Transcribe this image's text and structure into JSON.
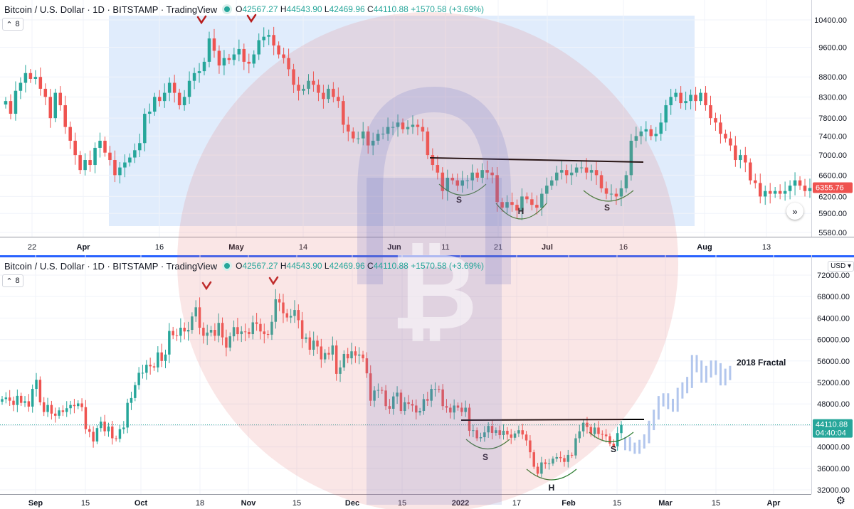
{
  "chart_data": [
    {
      "type": "candlestick",
      "title": "Bitcoin / U.S. Dollar · 1D · BITSTAMP · TradingView",
      "ohlc_legend": {
        "O": "42567.27",
        "H": "44543.90",
        "L": "42469.96",
        "C": "44110.88",
        "change": "+1570.58 (+3.69%)"
      },
      "collapse_label": "8",
      "x_ticks": [
        "22",
        "Apr",
        "16",
        "May",
        "14",
        "Jun",
        "11",
        "21",
        "Jul",
        "16",
        "Aug",
        "13"
      ],
      "y_ticks": [
        "10400.00",
        "9600.00",
        "8800.00",
        "8300.00",
        "7800.00",
        "7400.00",
        "7000.00",
        "6600.00",
        "6200.00",
        "5900.00",
        "5580.00"
      ],
      "ylim": [
        5580,
        10400
      ],
      "y_scale": "log",
      "last_price_label": "6355.76",
      "annotations": [
        "S",
        "H",
        "S"
      ],
      "closes": [
        8200,
        7900,
        8450,
        8650,
        8900,
        8750,
        8800,
        8500,
        8300,
        7800,
        8400,
        8100,
        7600,
        7300,
        7000,
        6700,
        6900,
        6800,
        7150,
        7300,
        7050,
        6900,
        6600,
        6750,
        6850,
        6950,
        7100,
        7250,
        7900,
        7950,
        8300,
        8200,
        8400,
        8650,
        8400,
        8100,
        8300,
        8700,
        8900,
        8950,
        9200,
        9850,
        9500,
        9100,
        9300,
        9250,
        9400,
        9550,
        9200,
        9150,
        9400,
        9800,
        9900,
        9950,
        9650,
        9400,
        9300,
        9000,
        8600,
        8450,
        8500,
        8700,
        8600,
        8400,
        8250,
        8500,
        8300,
        8200,
        7650,
        7500,
        7350,
        7350,
        7500,
        7200,
        7300,
        7450,
        7450,
        7600,
        7600,
        7700,
        7550,
        7600,
        7650,
        7600,
        7500,
        7000,
        6800,
        6650,
        6300,
        6550,
        6500,
        6400,
        6500,
        6500,
        6650,
        6550,
        6700,
        6650,
        6600,
        6100,
        6000,
        6100,
        6050,
        5950,
        6200,
        6150,
        6050,
        6000,
        6250,
        6400,
        6500,
        6650,
        6700,
        6600,
        6650,
        6750,
        6750,
        6650,
        6700,
        6600,
        6350,
        6250,
        6250,
        6200,
        6350,
        6600,
        7300,
        7400,
        7500,
        7550,
        7400,
        7450,
        7700,
        8100,
        8300,
        8400,
        8150,
        8200,
        8350,
        8200,
        8400,
        8100,
        7800,
        7700,
        7450,
        7350,
        7200,
        6900,
        7000,
        6850,
        6500,
        6450,
        6200,
        6300,
        6250,
        6300,
        6250,
        6300,
        6400,
        6500,
        6400,
        6300,
        6355.76
      ]
    },
    {
      "type": "candlestick",
      "title": "Bitcoin / U.S. Dollar · 1D · BITSTAMP · TradingView",
      "ohlc_legend": {
        "O": "42567.27",
        "H": "44543.90",
        "L": "42469.96",
        "C": "44110.88",
        "change": "+1570.58 (+3.69%)"
      },
      "collapse_label": "8",
      "x_ticks": [
        "Sep",
        "15",
        "Oct",
        "18",
        "Nov",
        "15",
        "Dec",
        "15",
        "2022",
        "17",
        "Feb",
        "15",
        "Mar",
        "15",
        "Apr"
      ],
      "y_ticks": [
        "72000.00",
        "68000.00",
        "64000.00",
        "60000.00",
        "56000.00",
        "52000.00",
        "48000.00",
        "44000.00",
        "40000.00",
        "36000.00",
        "32000.00"
      ],
      "ylim": [
        32000,
        72000
      ],
      "currency": "USD",
      "last_price_label": "44110.88",
      "countdown_label": "04:40:04",
      "annotations": [
        "S",
        "H",
        "S"
      ],
      "fractal_label": "2018 Fractal",
      "closes": [
        48900,
        49200,
        48600,
        47800,
        49500,
        48200,
        48500,
        47500,
        50800,
        52500,
        48300,
        46500,
        47800,
        46200,
        45800,
        46800,
        46500,
        47200,
        47800,
        47600,
        48100,
        47400,
        43300,
        42800,
        41000,
        43500,
        44700,
        42900,
        43800,
        41600,
        41500,
        43300,
        43600,
        48200,
        49100,
        51500,
        53800,
        53800,
        55300,
        55000,
        54800,
        57600,
        56000,
        57200,
        61600,
        60800,
        60700,
        62200,
        61500,
        61800,
        64300,
        66000,
        62200,
        60700,
        61300,
        61800,
        60700,
        63100,
        60400,
        58500,
        60600,
        62300,
        61000,
        61500,
        61400,
        61000,
        63200,
        62900,
        61500,
        61000,
        60900,
        63300,
        67500,
        66900,
        64900,
        64100,
        64400,
        65500,
        63600,
        60100,
        60400,
        58100,
        59800,
        58700,
        56300,
        57500,
        57200,
        58900,
        53600,
        54800,
        57300,
        56500,
        57800,
        57000,
        57200,
        56500,
        53700,
        48600,
        50500,
        50600,
        50500,
        47600,
        47100,
        49400,
        50100,
        46700,
        48300,
        48000,
        47700,
        46400,
        46700,
        48900,
        48600,
        50800,
        50800,
        50700,
        47600,
        47300,
        46400,
        47700,
        47300,
        46500,
        47300,
        43000,
        43100,
        41600,
        41800,
        42700,
        43900,
        42600,
        43100,
        42200,
        43000,
        42300,
        41700,
        42500,
        43100,
        42300,
        41200,
        39000,
        36300,
        35000,
        37100,
        36800,
        36900,
        37800,
        38100,
        37900,
        37200,
        38500,
        38400,
        41600,
        42900,
        44500,
        43700,
        42400,
        43600,
        42400,
        42300,
        42000,
        40600,
        40100,
        42567.27,
        44110.88
      ],
      "fractal_levels": [
        41000,
        40000,
        39500,
        40500,
        41500,
        44000,
        46000,
        48500,
        49000,
        48000,
        47500,
        50000,
        51000,
        52000,
        56000,
        55000,
        53000,
        54000,
        55000,
        54500,
        52500,
        53500,
        54000
      ]
    }
  ]
}
